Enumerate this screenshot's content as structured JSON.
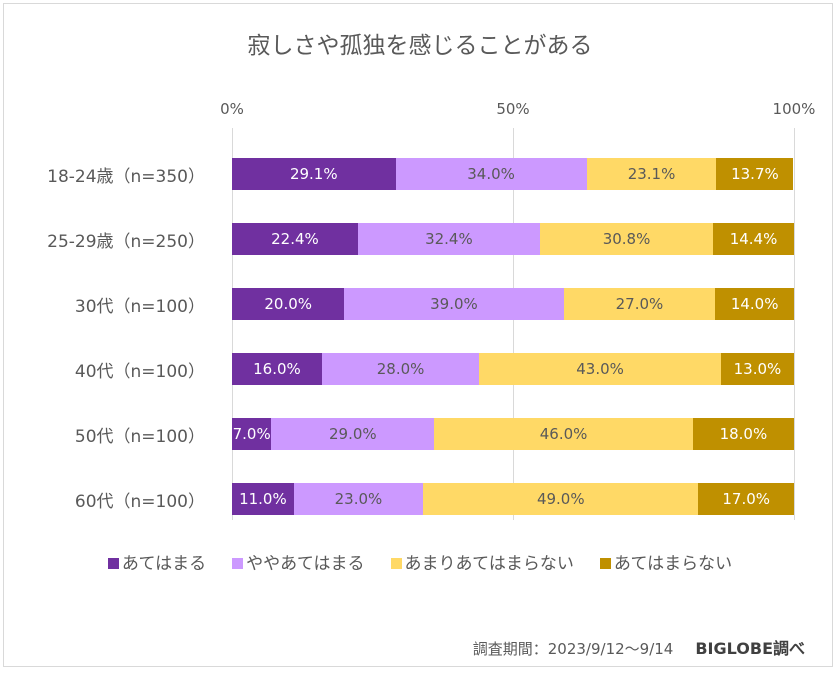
{
  "chart_data": {
    "type": "bar",
    "orientation": "horizontal",
    "stacked": true,
    "title": "寂しさや孤独を感じることがある",
    "xlabel": "",
    "ylabel": "",
    "xlim": [
      0,
      100
    ],
    "x_ticks": [
      "0%",
      "50%",
      "100%"
    ],
    "grid": true,
    "legend_position": "bottom",
    "categories": [
      "18-24歳（n=350）",
      "25-29歳（n=250）",
      "30代（n=100）",
      "40代（n=100）",
      "50代（n=100）",
      "60代（n=100）"
    ],
    "series": [
      {
        "name": "あてはまる",
        "color": "#7030A0",
        "label_color": "#ffffff",
        "values": [
          29.1,
          22.4,
          20.0,
          16.0,
          7.0,
          11.0
        ],
        "labels": [
          "29.1%",
          "22.4%",
          "20.0%",
          "16.0%",
          "7.0%",
          "11.0%"
        ]
      },
      {
        "name": "ややあてはまる",
        "color": "#CC99FF",
        "label_color": "#595959",
        "values": [
          34.0,
          32.4,
          39.0,
          28.0,
          29.0,
          23.0
        ],
        "labels": [
          "34.0%",
          "32.4%",
          "39.0%",
          "28.0%",
          "29.0%",
          "23.0%"
        ]
      },
      {
        "name": "あまりあてはまらない",
        "color": "#FFD966",
        "label_color": "#595959",
        "values": [
          23.1,
          30.8,
          27.0,
          43.0,
          46.0,
          49.0
        ],
        "labels": [
          "23.1%",
          "30.8%",
          "27.0%",
          "43.0%",
          "46.0%",
          "49.0%"
        ]
      },
      {
        "name": "あてはまらない",
        "color": "#BF9000",
        "label_color": "#ffffff",
        "values": [
          13.7,
          14.4,
          14.0,
          13.0,
          18.0,
          17.0
        ],
        "labels": [
          "13.7%",
          "14.4%",
          "14.0%",
          "13.0%",
          "18.0%",
          "17.0%"
        ]
      }
    ]
  },
  "footer": {
    "period": "調査期間：2023/9/12～9/14",
    "source": "BIGLOBE調べ"
  }
}
